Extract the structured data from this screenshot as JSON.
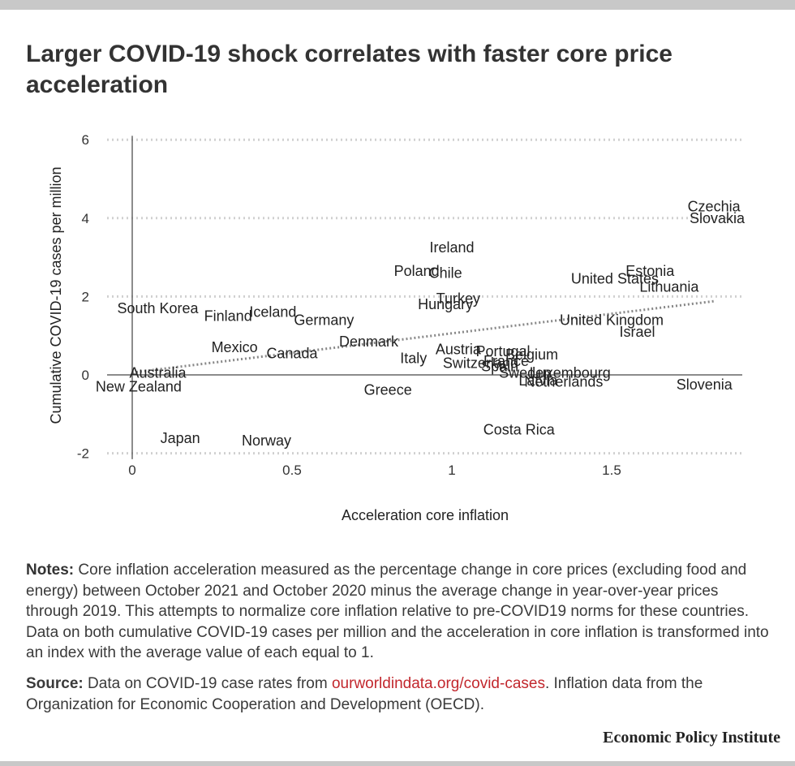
{
  "title": "Larger COVID-19 shock correlates with faster core price acceleration",
  "notes": {
    "label": "Notes:",
    "text": "Core inflation acceleration measured as the percentage change in core prices (excluding food and energy) between October 2021 and October 2020 minus the average change in year-over-year prices through 2019. This attempts to normalize core inflation relative to pre-COVID19 norms for these countries. Data on both cumulative COVID-19 cases per million and the acceleration in core inflation is transformed into an index with the average value of each equal to 1."
  },
  "source": {
    "label": "Source:",
    "text_before": "Data on COVID-19 case rates from",
    "link": "ourworldindata.org/covid-cases",
    "text_after": ". Inflation data from the Organization for Economic Cooperation and Development (OECD)."
  },
  "brand": "Economic Policy Institute",
  "colors": {
    "trend": "#888888",
    "grid": "#d0d0d0",
    "axis": "#666666",
    "link": "#c2272d"
  },
  "chart_data": {
    "type": "scatter",
    "title": "Larger COVID-19 shock correlates with faster core price acceleration",
    "xlabel": "Acceleration core inflation",
    "ylabel": "Cumulative COVID-19 cases per million",
    "xlim": [
      -0.08,
      1.92
    ],
    "ylim": [
      -2.2,
      6.2
    ],
    "xticks": [
      0,
      0.5,
      1,
      1.5
    ],
    "xtick_labels": [
      "0",
      "0.5",
      "1",
      "1.5"
    ],
    "yticks": [
      -2,
      0,
      2,
      4,
      6
    ],
    "ytick_labels": [
      "-2",
      "0",
      "2",
      "4",
      "6"
    ],
    "grid": "horizontal dotted",
    "trendline": {
      "x": [
        0,
        1.82
      ],
      "y": [
        0.06,
        1.88
      ]
    },
    "points": [
      {
        "label": "Czechia",
        "x": 1.82,
        "y": 4.3
      },
      {
        "label": "Slovakia",
        "x": 1.83,
        "y": 4.0
      },
      {
        "label": "Ireland",
        "x": 1.0,
        "y": 3.25
      },
      {
        "label": "Poland",
        "x": 0.89,
        "y": 2.65
      },
      {
        "label": "Chile",
        "x": 0.98,
        "y": 2.6
      },
      {
        "label": "Estonia",
        "x": 1.62,
        "y": 2.65
      },
      {
        "label": "United States",
        "x": 1.51,
        "y": 2.45
      },
      {
        "label": "Lithuania",
        "x": 1.68,
        "y": 2.25
      },
      {
        "label": "Turkey",
        "x": 1.02,
        "y": 1.95
      },
      {
        "label": "Hungary",
        "x": 0.98,
        "y": 1.8
      },
      {
        "label": "South Korea",
        "x": 0.08,
        "y": 1.7
      },
      {
        "label": "Finland",
        "x": 0.3,
        "y": 1.5
      },
      {
        "label": "Iceland",
        "x": 0.44,
        "y": 1.6
      },
      {
        "label": "Germany",
        "x": 0.6,
        "y": 1.4
      },
      {
        "label": "United Kingdom",
        "x": 1.5,
        "y": 1.4
      },
      {
        "label": "Israel",
        "x": 1.58,
        "y": 1.1
      },
      {
        "label": "Denmark",
        "x": 0.74,
        "y": 0.85
      },
      {
        "label": "Mexico",
        "x": 0.32,
        "y": 0.7
      },
      {
        "label": "Canada",
        "x": 0.5,
        "y": 0.55
      },
      {
        "label": "Austria",
        "x": 1.02,
        "y": 0.65
      },
      {
        "label": "Portugal",
        "x": 1.16,
        "y": 0.6
      },
      {
        "label": "Belgium",
        "x": 1.25,
        "y": 0.52
      },
      {
        "label": "Italy",
        "x": 0.88,
        "y": 0.42
      },
      {
        "label": "Switzerland",
        "x": 1.09,
        "y": 0.3
      },
      {
        "label": "France",
        "x": 1.17,
        "y": 0.35
      },
      {
        "label": "Spain",
        "x": 1.15,
        "y": 0.22
      },
      {
        "label": "Sweden",
        "x": 1.23,
        "y": 0.05
      },
      {
        "label": "Luxembourg",
        "x": 1.37,
        "y": 0.05
      },
      {
        "label": "Latvia",
        "x": 1.27,
        "y": -0.15
      },
      {
        "label": "Netherlands",
        "x": 1.35,
        "y": -0.18
      },
      {
        "label": "Australia",
        "x": 0.08,
        "y": 0.05
      },
      {
        "label": "New Zealand",
        "x": 0.02,
        "y": -0.3
      },
      {
        "label": "Greece",
        "x": 0.8,
        "y": -0.38
      },
      {
        "label": "Slovenia",
        "x": 1.79,
        "y": -0.25
      },
      {
        "label": "Costa Rica",
        "x": 1.21,
        "y": -1.4
      },
      {
        "label": "Japan",
        "x": 0.15,
        "y": -1.62
      },
      {
        "label": "Norway",
        "x": 0.42,
        "y": -1.68
      }
    ]
  }
}
